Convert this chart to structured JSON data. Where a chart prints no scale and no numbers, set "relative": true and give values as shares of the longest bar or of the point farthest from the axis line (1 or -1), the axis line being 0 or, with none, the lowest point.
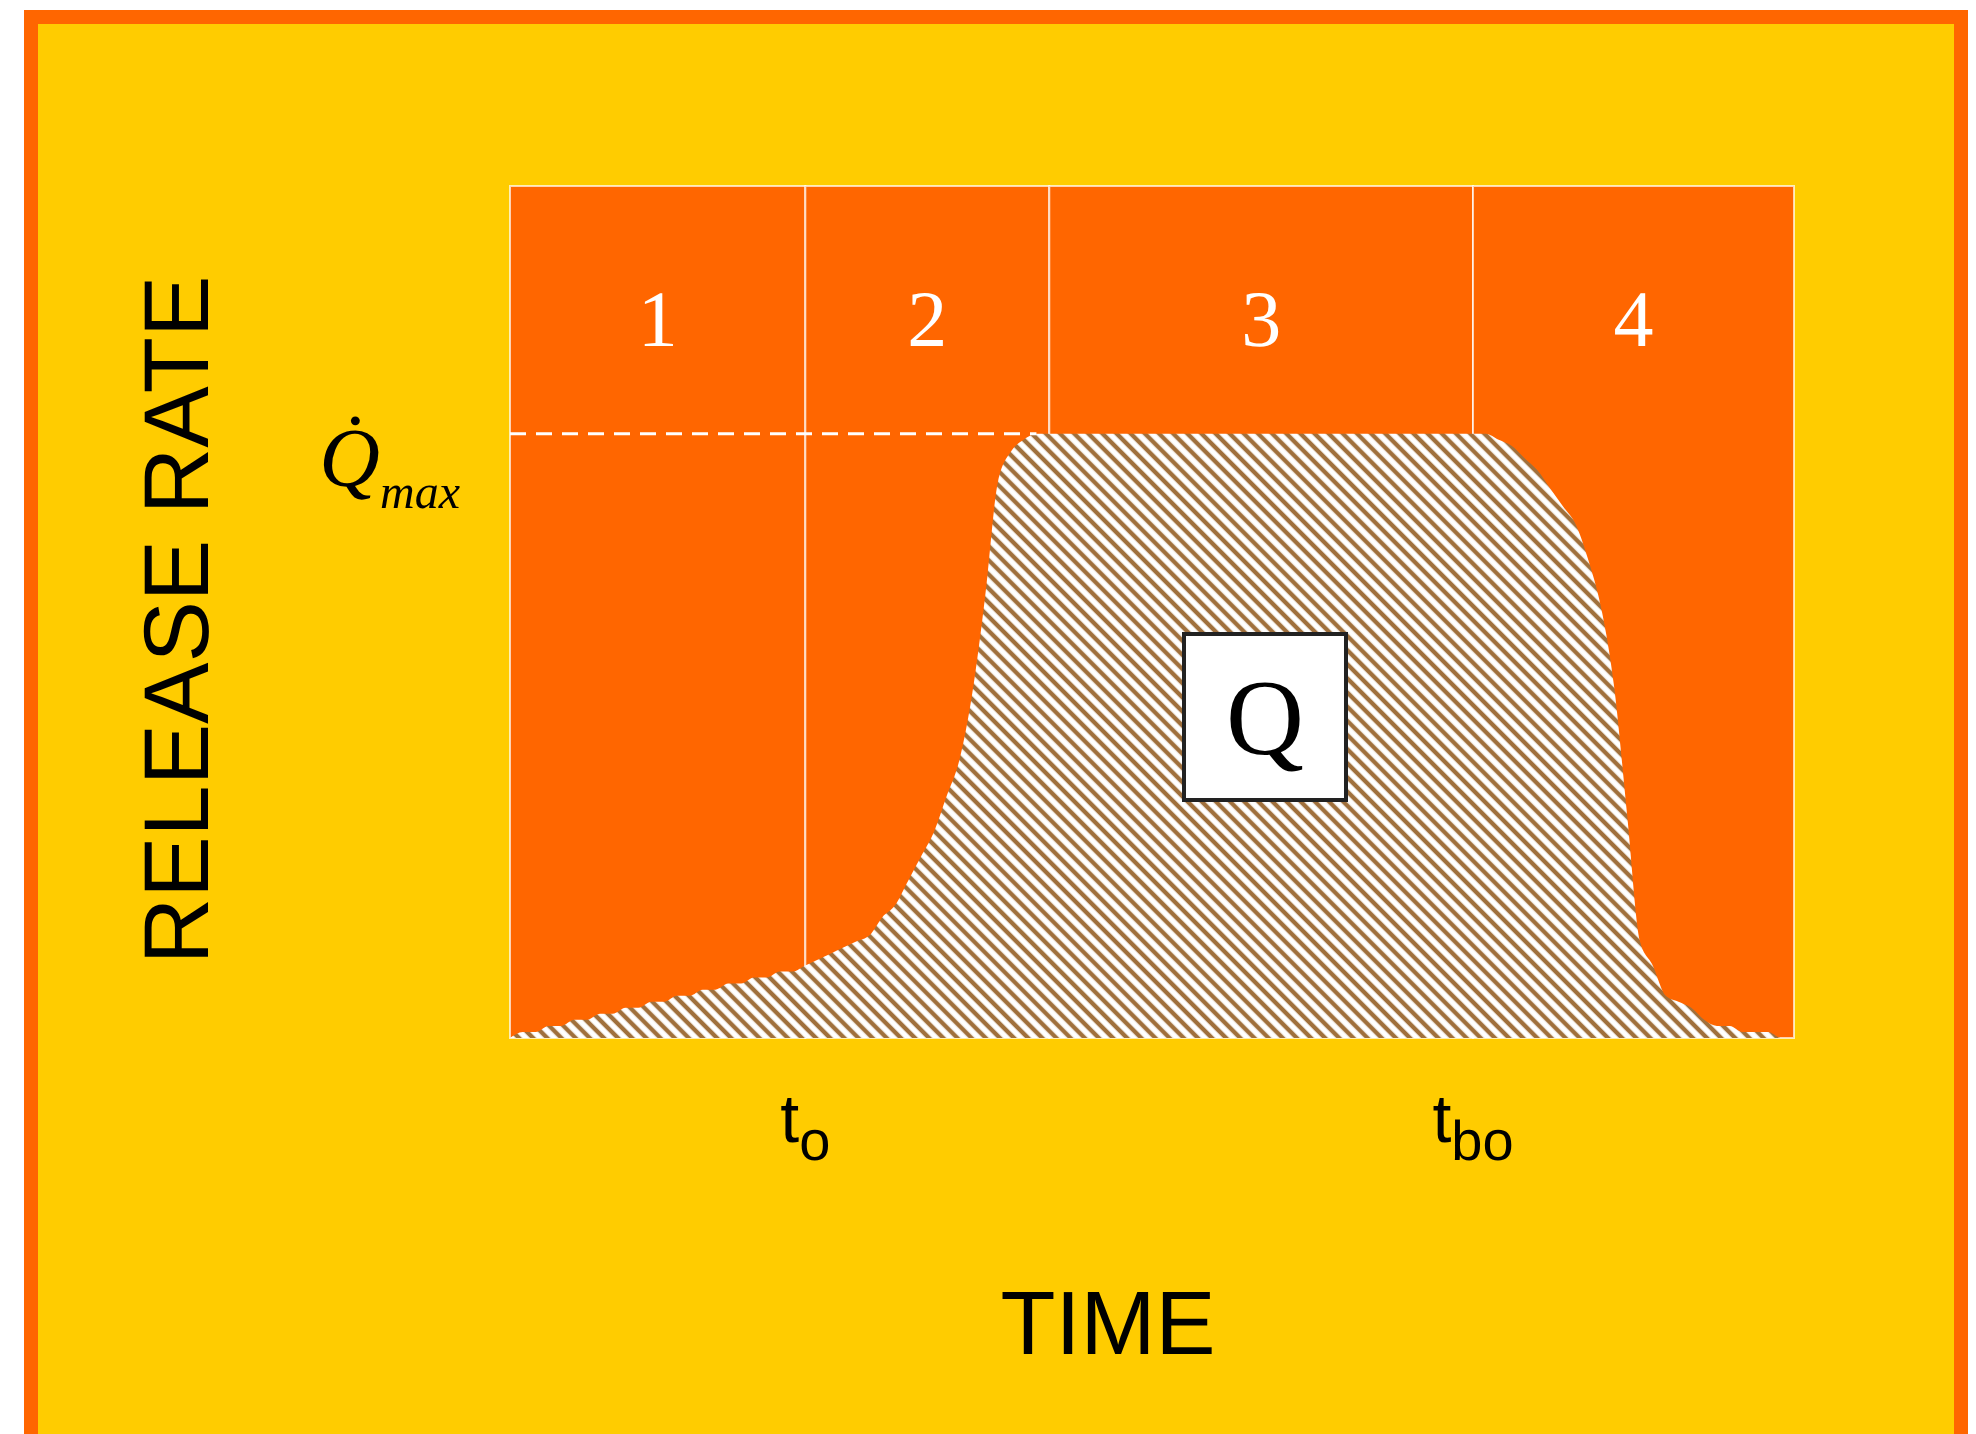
{
  "chart_data": {
    "type": "area",
    "relative": true,
    "xlabel": "TIME",
    "ylabel": "RELEASE RATE",
    "categories": [
      null,
      null,
      null,
      null,
      null,
      null,
      null,
      null,
      null,
      null,
      null,
      null,
      null,
      null,
      null,
      null,
      null,
      null,
      null,
      null,
      null,
      null,
      null,
      "t$_{o}$",
      null,
      null,
      null,
      null,
      null,
      null,
      null,
      null,
      null,
      null,
      null,
      null,
      null,
      null,
      null,
      null,
      null,
      null,
      null,
      null,
      null,
      null,
      null,
      null,
      null,
      null,
      null,
      null,
      null,
      null,
      null,
      null,
      null,
      null,
      null,
      null,
      null,
      null,
      null,
      null,
      null,
      null,
      null,
      null,
      null,
      null,
      null,
      null,
      null,
      null,
      null,
      "t$_{bo}$",
      null,
      null,
      null,
      null,
      null,
      null,
      null,
      null,
      null,
      null,
      null,
      null,
      null,
      null,
      null,
      null,
      null,
      null,
      null,
      null,
      null,
      null,
      null,
      null,
      null
    ],
    "series": [
      {
        "color": "#a0703c",
        "values": [
          0,
          0.01,
          0.01,
          0.02,
          0.02,
          0.03,
          0.03,
          0.04,
          0.04,
          0.05,
          0.05,
          0.06,
          0.06,
          0.07,
          0.07,
          0.08,
          0.08,
          0.09,
          0.09,
          0.1,
          0.1,
          0.11,
          0.11,
          0.12,
          0.13,
          0.14,
          0.15,
          0.16,
          0.17,
          0.2,
          0.22,
          0.26,
          0.3,
          0.34,
          0.4,
          0.46,
          0.57,
          0.73,
          0.92,
          0.97,
          0.99,
          1,
          1,
          1,
          1,
          1,
          1,
          1,
          1,
          1,
          1,
          1,
          1,
          1,
          1,
          1,
          1,
          1,
          1,
          1,
          1,
          1,
          1,
          1,
          1,
          1,
          1,
          1,
          1,
          1,
          1,
          1,
          1,
          1,
          1,
          1,
          1,
          0.99,
          0.98,
          0.96,
          0.94,
          0.91,
          0.88,
          0.85,
          0.79,
          0.71,
          0.58,
          0.37,
          0.16,
          0.12,
          0.07,
          0.06,
          0.05,
          0.03,
          0.02,
          0.02,
          0.01,
          0.01,
          0.01,
          0,
          0
        ]
      }
    ],
    "ref_lines": [
      {
        "axis": "y",
        "value": 1,
        "label": "Q̇$_{max}$",
        "color": "#ffffff",
        "line_style": "dashed"
      }
    ],
    "annotations": [
      "1",
      "2",
      "3",
      "4",
      "Q"
    ]
  }
}
